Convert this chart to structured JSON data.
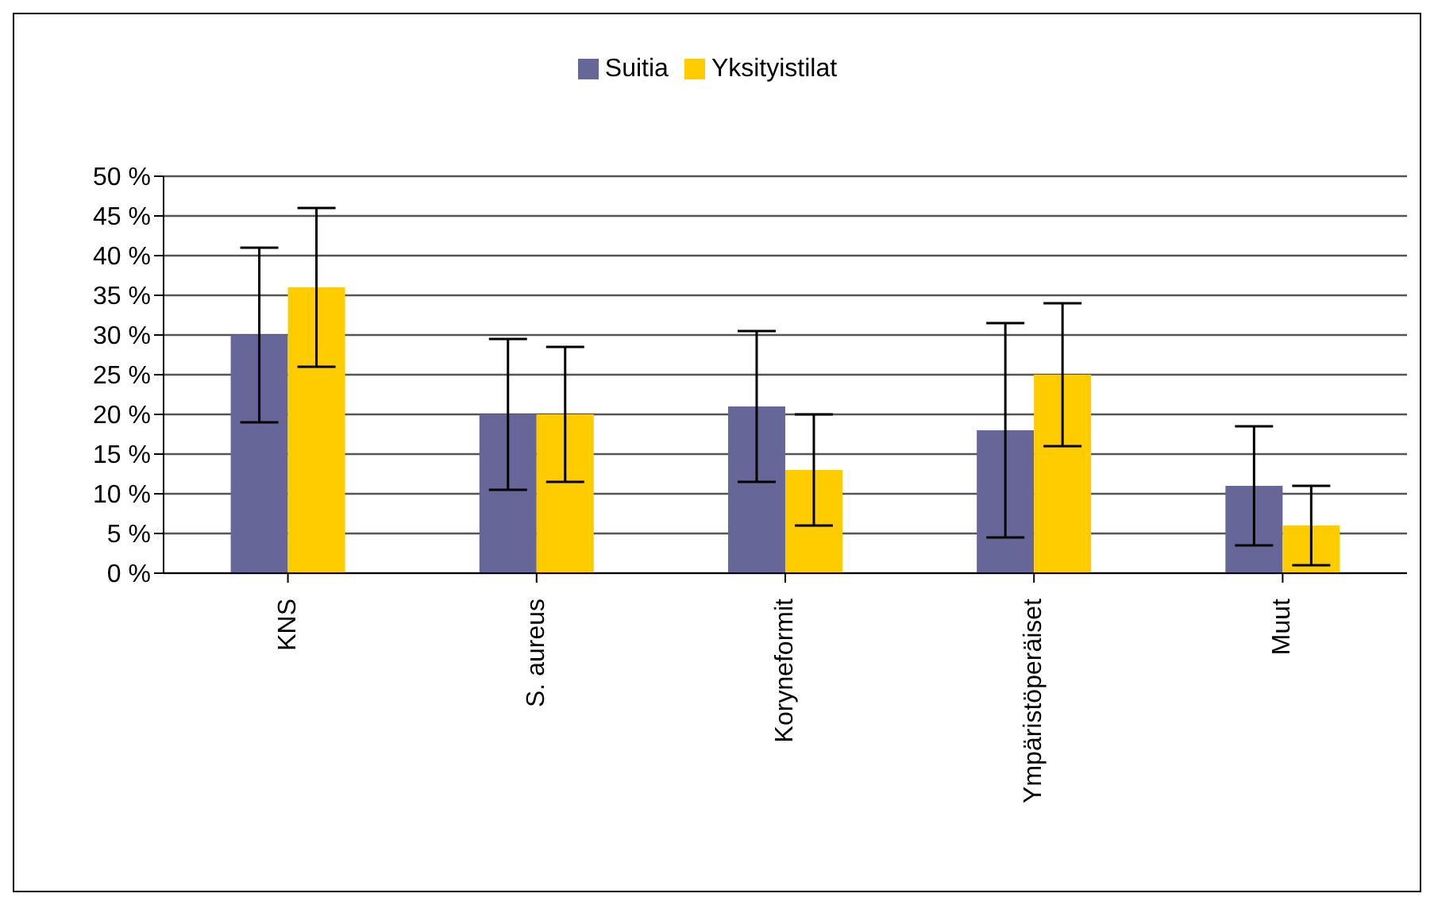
{
  "chart_data": {
    "type": "bar",
    "categories": [
      "KNS",
      "S. aureus",
      "Koryneformit",
      "Ympäristöperäiset",
      "Muut"
    ],
    "series": [
      {
        "name": "Suitia",
        "color": "#666699",
        "values": [
          30,
          20,
          21,
          18,
          11
        ],
        "errors": [
          11,
          9.5,
          9.5,
          13.5,
          7.5
        ]
      },
      {
        "name": "Yksityistilat",
        "color": "#ffcc00",
        "values": [
          36,
          20,
          13,
          25,
          6
        ],
        "errors": [
          10,
          8.5,
          7,
          9,
          5
        ]
      }
    ],
    "ylim": [
      0,
      50
    ],
    "yticks": [
      {
        "value": 0,
        "label": "0 %"
      },
      {
        "value": 5,
        "label": "5 %"
      },
      {
        "value": 10,
        "label": "10 %"
      },
      {
        "value": 15,
        "label": "15 %"
      },
      {
        "value": 20,
        "label": "20 %"
      },
      {
        "value": 25,
        "label": "25 %"
      },
      {
        "value": 30,
        "label": "30 %"
      },
      {
        "value": 35,
        "label": "35 %"
      },
      {
        "value": 40,
        "label": "40 %"
      },
      {
        "value": 45,
        "label": "45 %"
      },
      {
        "value": 50,
        "label": "50 %"
      }
    ],
    "grid": "y",
    "legend": "top"
  }
}
